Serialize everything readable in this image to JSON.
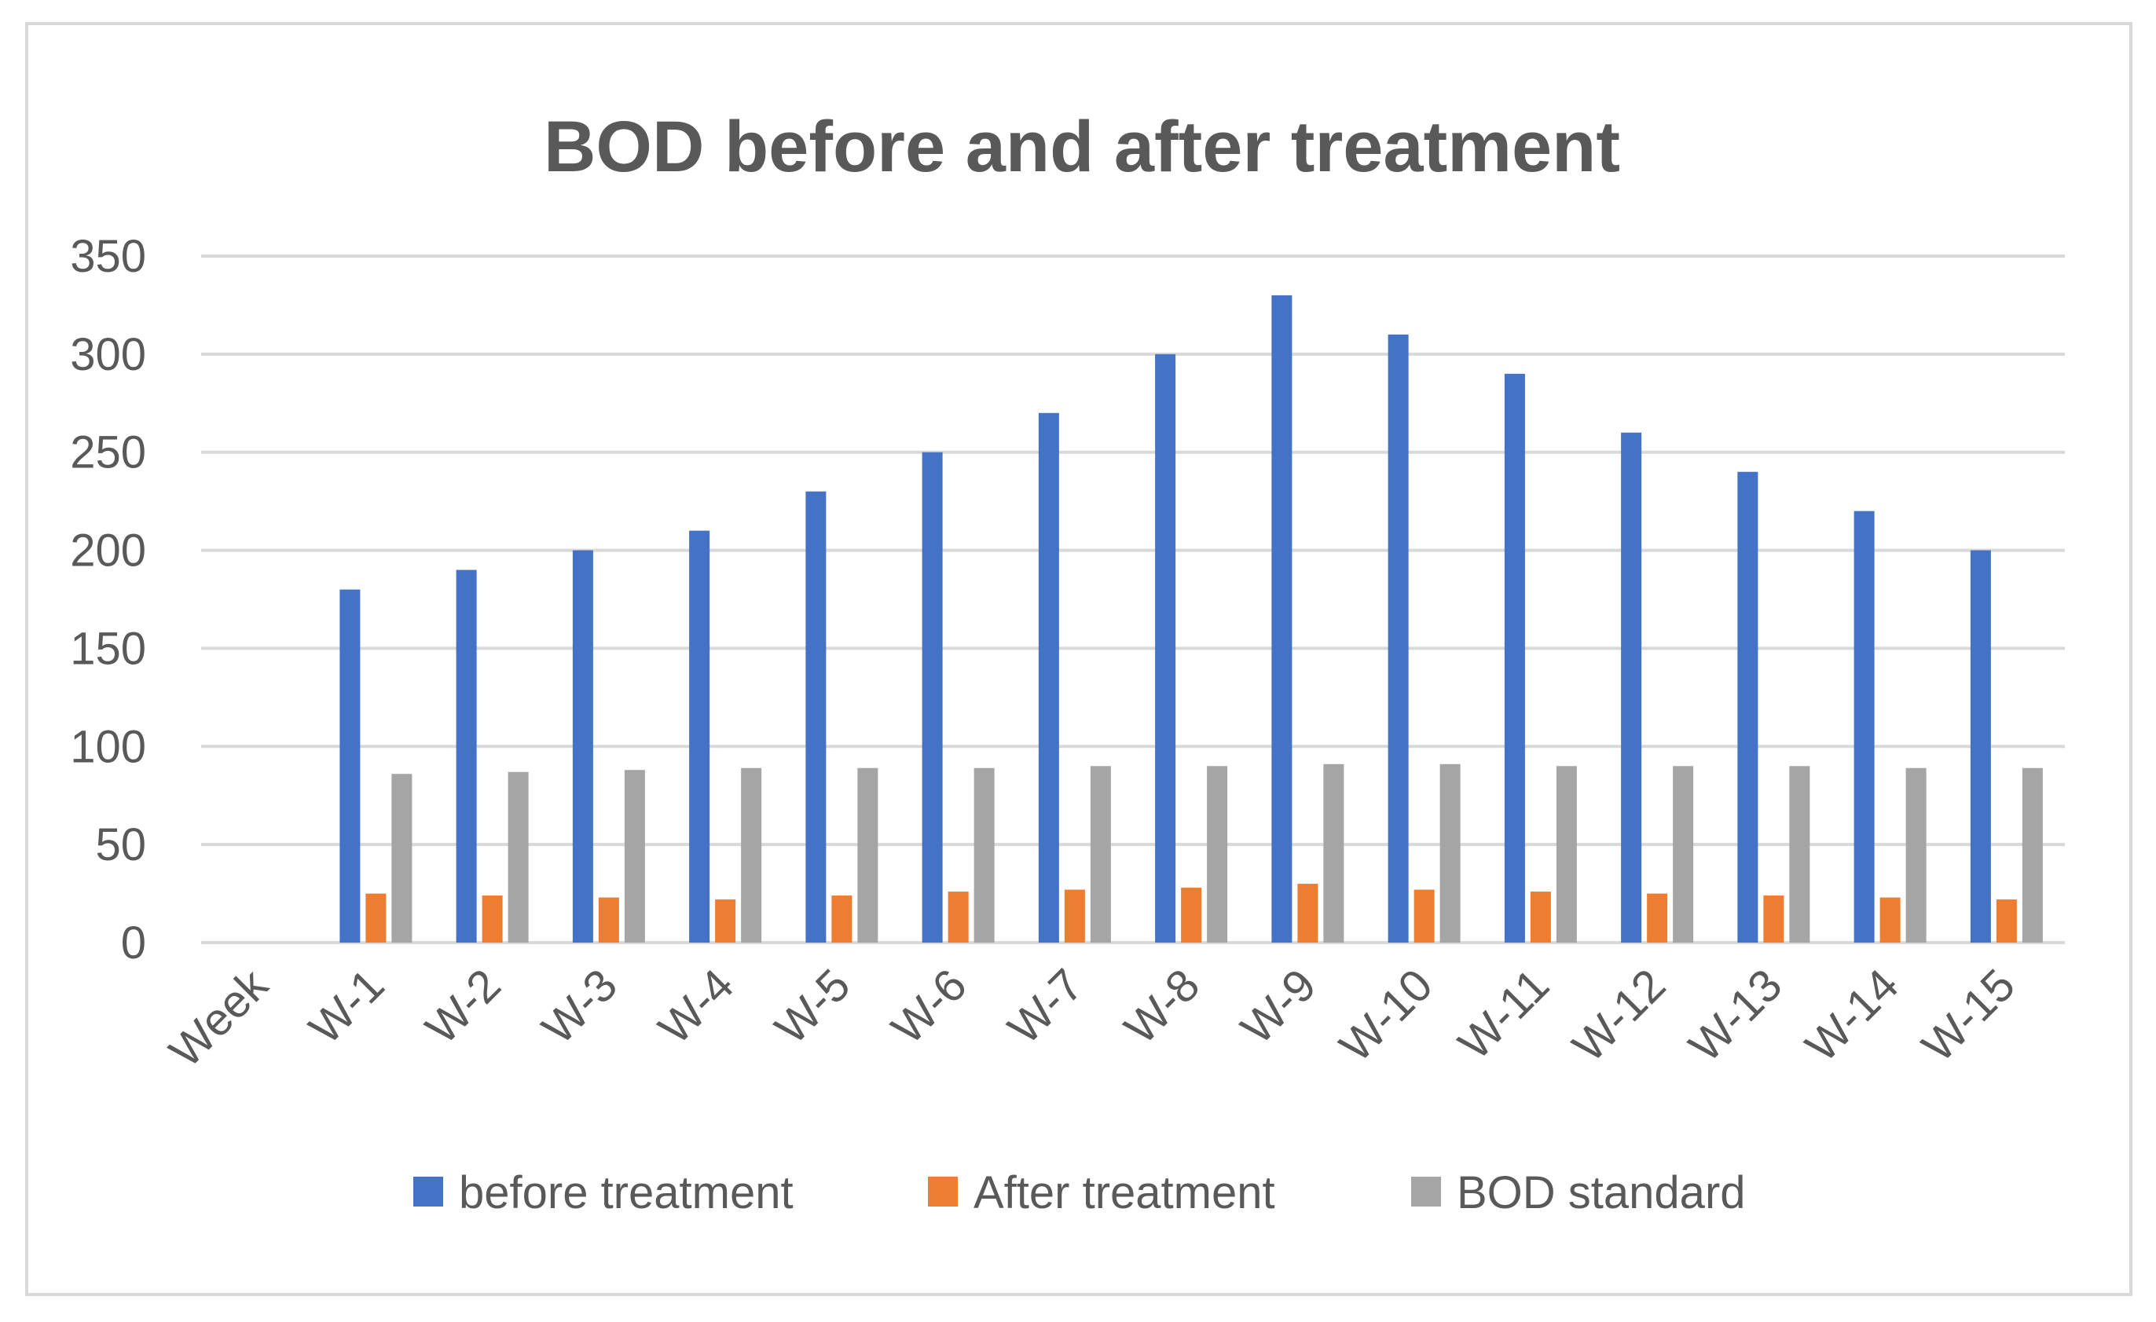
{
  "chart_data": {
    "type": "bar",
    "title": "BOD before and after treatment",
    "xlabel": "",
    "ylabel": "",
    "ylim": [
      0,
      350
    ],
    "yticks": [
      0,
      50,
      100,
      150,
      200,
      250,
      300,
      350
    ],
    "grid": true,
    "legend_position": "bottom",
    "categories": [
      "Week",
      "W-1",
      "W-2",
      "W-3",
      "W-4",
      "W-5",
      "W-6",
      "W-7",
      "W-8",
      "W-9",
      "W-10",
      "W-11",
      "W-12",
      "W-13",
      "W-14",
      "W-15"
    ],
    "series": [
      {
        "name": "before treatment",
        "color": "#4472c4",
        "values": [
          null,
          180,
          190,
          200,
          210,
          230,
          250,
          270,
          300,
          330,
          310,
          290,
          260,
          240,
          220,
          200
        ]
      },
      {
        "name": "After treatment",
        "color": "#ed7d31",
        "values": [
          null,
          25,
          24,
          23,
          22,
          24,
          26,
          27,
          28,
          30,
          27,
          26,
          25,
          24,
          23,
          22
        ]
      },
      {
        "name": "BOD standard",
        "color": "#a5a5a5",
        "values": [
          null,
          86,
          87,
          88,
          89,
          89,
          89,
          90,
          90,
          91,
          91,
          90,
          90,
          90,
          89,
          89
        ]
      }
    ]
  }
}
